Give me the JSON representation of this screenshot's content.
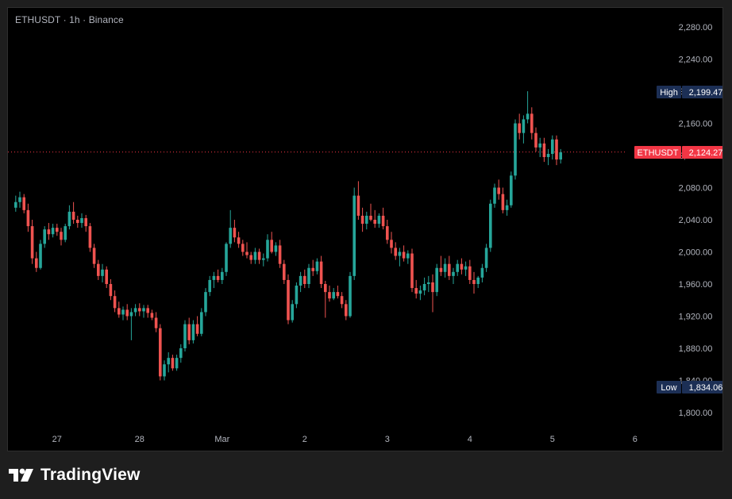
{
  "legend": {
    "symbol": "ETHUSDT",
    "interval": "1h",
    "exchange": "Binance",
    "sep": "·"
  },
  "brand": {
    "name": "TradingView"
  },
  "colors": {
    "up": "#26a69a",
    "down": "#ef5350",
    "background": "#000000",
    "high_tag": "#1c2f55",
    "current_tag": "#f23645",
    "low_tag": "#1c2f55"
  },
  "chart_data": {
    "type": "candlestick",
    "title": "ETHUSDT · 1h · Binance",
    "y_axis": {
      "range": [
        1780,
        2310
      ],
      "ticks": [
        1800,
        1840,
        1880,
        1920,
        1960,
        2000,
        2040,
        2080,
        2120,
        2160,
        2200,
        2240,
        2280
      ],
      "tick_labels": [
        "1,800.00",
        "1,840.00",
        "1,880.00",
        "1,920.00",
        "1,960.00",
        "2,000.00",
        "2,040.00",
        "2,080.00",
        "2,120.00",
        "2,160.00",
        "2,200.00",
        "2,240.00",
        "2,280.00"
      ]
    },
    "x_axis": {
      "labels": [
        "27",
        "28",
        "Mar",
        "2",
        "3",
        "4",
        "5",
        "6"
      ],
      "label_candle_index": [
        10,
        30,
        50,
        70,
        90,
        110,
        130,
        150
      ]
    },
    "markers": {
      "high": {
        "label": "High",
        "value": 2199.47,
        "text": "2,199.47"
      },
      "low": {
        "label": "Low",
        "value": 1834.06,
        "text": "1,834.06"
      },
      "last": {
        "label": "ETHUSDT",
        "value": 2124.27,
        "text": "2,124.27"
      }
    },
    "candles": [
      [
        2055,
        2070,
        2050,
        2062
      ],
      [
        2062,
        2075,
        2055,
        2068
      ],
      [
        2068,
        2072,
        2048,
        2052
      ],
      [
        2052,
        2060,
        2025,
        2032
      ],
      [
        2032,
        2040,
        1985,
        1992
      ],
      [
        1992,
        2000,
        1975,
        1980
      ],
      [
        1980,
        2015,
        1978,
        2010
      ],
      [
        2010,
        2032,
        2005,
        2028
      ],
      [
        2028,
        2036,
        2015,
        2022
      ],
      [
        2022,
        2035,
        2018,
        2030
      ],
      [
        2030,
        2035,
        2020,
        2025
      ],
      [
        2025,
        2030,
        2008,
        2015
      ],
      [
        2015,
        2035,
        2012,
        2032
      ],
      [
        2032,
        2058,
        2028,
        2050
      ],
      [
        2050,
        2062,
        2035,
        2040
      ],
      [
        2040,
        2045,
        2030,
        2036
      ],
      [
        2036,
        2048,
        2030,
        2042
      ],
      [
        2042,
        2046,
        2025,
        2032
      ],
      [
        2032,
        2036,
        2000,
        2005
      ],
      [
        2005,
        2010,
        1980,
        1985
      ],
      [
        1985,
        1990,
        1965,
        1970
      ],
      [
        1970,
        1985,
        1962,
        1978
      ],
      [
        1978,
        1982,
        1955,
        1960
      ],
      [
        1960,
        1966,
        1940,
        1945
      ],
      [
        1945,
        1952,
        1925,
        1930
      ],
      [
        1930,
        1938,
        1918,
        1922
      ],
      [
        1922,
        1932,
        1915,
        1928
      ],
      [
        1928,
        1935,
        1915,
        1920
      ],
      [
        1920,
        1930,
        1890,
        1925
      ],
      [
        1925,
        1935,
        1920,
        1930
      ],
      [
        1930,
        1936,
        1920,
        1926
      ],
      [
        1926,
        1934,
        1918,
        1930
      ],
      [
        1930,
        1934,
        1918,
        1924
      ],
      [
        1924,
        1928,
        1915,
        1918
      ],
      [
        1918,
        1925,
        1900,
        1905
      ],
      [
        1905,
        1910,
        1840,
        1845
      ],
      [
        1845,
        1865,
        1840,
        1860
      ],
      [
        1860,
        1875,
        1850,
        1868
      ],
      [
        1868,
        1872,
        1852,
        1855
      ],
      [
        1855,
        1872,
        1852,
        1868
      ],
      [
        1868,
        1885,
        1862,
        1880
      ],
      [
        1880,
        1915,
        1876,
        1910
      ],
      [
        1910,
        1918,
        1885,
        1890
      ],
      [
        1890,
        1915,
        1886,
        1910
      ],
      [
        1910,
        1920,
        1895,
        1898
      ],
      [
        1898,
        1930,
        1895,
        1925
      ],
      [
        1925,
        1955,
        1920,
        1950
      ],
      [
        1950,
        1970,
        1945,
        1965
      ],
      [
        1965,
        1975,
        1955,
        1970
      ],
      [
        1970,
        1978,
        1962,
        1965
      ],
      [
        1965,
        1980,
        1960,
        1975
      ],
      [
        1975,
        2012,
        1970,
        2010
      ],
      [
        2010,
        2052,
        2005,
        2030
      ],
      [
        2030,
        2040,
        2012,
        2018
      ],
      [
        2018,
        2025,
        2005,
        2010
      ],
      [
        2010,
        2015,
        1995,
        2000
      ],
      [
        2000,
        2012,
        1992,
        1996
      ],
      [
        1996,
        2000,
        1985,
        1990
      ],
      [
        1990,
        2005,
        1985,
        2000
      ],
      [
        2000,
        2004,
        1985,
        1990
      ],
      [
        1990,
        1998,
        1982,
        1992
      ],
      [
        1992,
        2022,
        1988,
        2015
      ],
      [
        2015,
        2025,
        1998,
        2000
      ],
      [
        2000,
        2012,
        1995,
        2008
      ],
      [
        2008,
        2015,
        1980,
        1985
      ],
      [
        1985,
        1990,
        1960,
        1965
      ],
      [
        1965,
        1972,
        1910,
        1915
      ],
      [
        1915,
        1940,
        1912,
        1935
      ],
      [
        1935,
        1962,
        1930,
        1958
      ],
      [
        1958,
        1975,
        1950,
        1970
      ],
      [
        1970,
        1978,
        1955,
        1960
      ],
      [
        1960,
        1985,
        1955,
        1980
      ],
      [
        1980,
        1990,
        1970,
        1976
      ],
      [
        1976,
        1992,
        1972,
        1988
      ],
      [
        1988,
        1995,
        1955,
        1960
      ],
      [
        1960,
        1964,
        1918,
        1950
      ],
      [
        1950,
        1958,
        1938,
        1942
      ],
      [
        1942,
        1955,
        1940,
        1950
      ],
      [
        1950,
        1958,
        1942,
        1945
      ],
      [
        1945,
        1950,
        1930,
        1935
      ],
      [
        1935,
        1940,
        1915,
        1920
      ],
      [
        1920,
        1975,
        1918,
        1970
      ],
      [
        1970,
        2080,
        1965,
        2070
      ],
      [
        2070,
        2088,
        2040,
        2045
      ],
      [
        2045,
        2055,
        2025,
        2035
      ],
      [
        2035,
        2050,
        2028,
        2045
      ],
      [
        2045,
        2060,
        2038,
        2040
      ],
      [
        2040,
        2052,
        2030,
        2035
      ],
      [
        2035,
        2048,
        2030,
        2045
      ],
      [
        2045,
        2055,
        2028,
        2032
      ],
      [
        2032,
        2040,
        2010,
        2015
      ],
      [
        2015,
        2025,
        1998,
        2005
      ],
      [
        2005,
        2012,
        1990,
        1995
      ],
      [
        1995,
        2005,
        1982,
        2000
      ],
      [
        2000,
        2008,
        1988,
        1992
      ],
      [
        1992,
        2002,
        1985,
        1998
      ],
      [
        1998,
        2004,
        1950,
        1955
      ],
      [
        1955,
        1965,
        1942,
        1948
      ],
      [
        1948,
        1958,
        1940,
        1952
      ],
      [
        1952,
        1968,
        1946,
        1960
      ],
      [
        1960,
        1970,
        1950,
        1962
      ],
      [
        1962,
        1972,
        1925,
        1950
      ],
      [
        1950,
        1985,
        1945,
        1980
      ],
      [
        1980,
        1995,
        1970,
        1975
      ],
      [
        1975,
        1992,
        1968,
        1985
      ],
      [
        1985,
        1995,
        1965,
        1970
      ],
      [
        1970,
        1980,
        1960,
        1975
      ],
      [
        1975,
        1990,
        1970,
        1985
      ],
      [
        1985,
        1992,
        1972,
        1978
      ],
      [
        1978,
        1988,
        1970,
        1982
      ],
      [
        1982,
        1990,
        1960,
        1965
      ],
      [
        1965,
        1975,
        1948,
        1960
      ],
      [
        1960,
        1970,
        1955,
        1968
      ],
      [
        1968,
        1985,
        1962,
        1980
      ],
      [
        1980,
        2010,
        1975,
        2005
      ],
      [
        2005,
        2065,
        2000,
        2060
      ],
      [
        2060,
        2085,
        2055,
        2080
      ],
      [
        2080,
        2090,
        2065,
        2072
      ],
      [
        2072,
        2080,
        2048,
        2052
      ],
      [
        2052,
        2065,
        2045,
        2058
      ],
      [
        2058,
        2100,
        2055,
        2095
      ],
      [
        2095,
        2165,
        2090,
        2160
      ],
      [
        2160,
        2172,
        2140,
        2148
      ],
      [
        2148,
        2170,
        2135,
        2165
      ],
      [
        2165,
        2200,
        2160,
        2172
      ],
      [
        2172,
        2180,
        2140,
        2148
      ],
      [
        2148,
        2155,
        2125,
        2130
      ],
      [
        2130,
        2142,
        2118,
        2135
      ],
      [
        2135,
        2142,
        2112,
        2118
      ],
      [
        2118,
        2128,
        2108,
        2122
      ],
      [
        2122,
        2145,
        2115,
        2140
      ],
      [
        2140,
        2145,
        2108,
        2115
      ],
      [
        2115,
        2128,
        2110,
        2124
      ]
    ],
    "geometry": {
      "first_candle_x": 9.8,
      "candle_spacing": 5.2,
      "body_width": 3.6
    }
  }
}
